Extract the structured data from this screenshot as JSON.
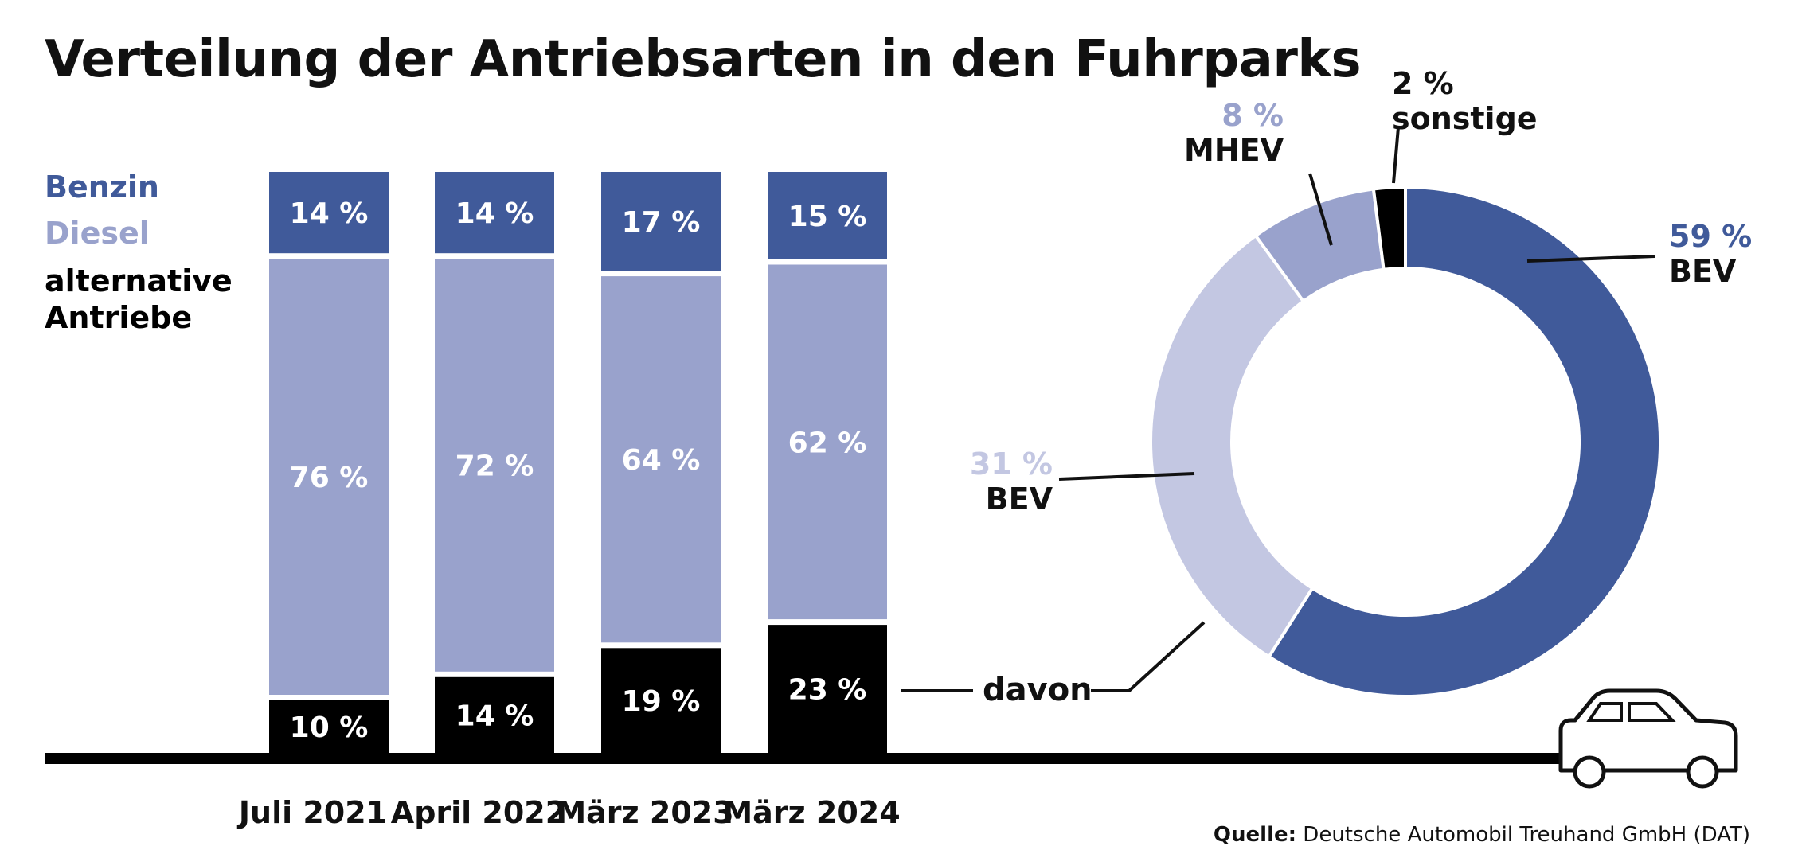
{
  "title": "Verteilung der Antriebsarten in den Fuhrparks",
  "legend": {
    "benzin": "Benzin",
    "diesel": "Diesel",
    "alternative_line1": "alternative",
    "alternative_line2": "Antriebe"
  },
  "colors": {
    "benzin": "#405a9a",
    "diesel": "#99a2cc",
    "alternative": "#000000",
    "bev": "#405a9a",
    "phev": "#c3c7e2",
    "mhev": "#99a2cc",
    "sonstige": "#000000",
    "baseline": "#000000"
  },
  "davon_label": "davon",
  "source": {
    "label": "Quelle:",
    "text": "Deutsche Automobil Treuhand GmbH (DAT)"
  },
  "chart_data": [
    {
      "type": "bar",
      "stacked": true,
      "categories": [
        "Juli 2021",
        "April 2022",
        "März 2023",
        "März 2024"
      ],
      "series": [
        {
          "name": "alternative Antriebe",
          "values": [
            10,
            14,
            19,
            23
          ],
          "labels": [
            "10 %",
            "14 %",
            "19 %",
            "23 %"
          ]
        },
        {
          "name": "Diesel",
          "values": [
            76,
            72,
            64,
            62
          ],
          "labels": [
            "76 %",
            "72 %",
            "64 %",
            "62 %"
          ]
        },
        {
          "name": "Benzin",
          "values": [
            14,
            14,
            17,
            15
          ],
          "labels": [
            "14 %",
            "14 %",
            "17 %",
            "15 %"
          ]
        }
      ],
      "ylim": [
        0,
        100
      ],
      "legend_position": "top-left"
    },
    {
      "type": "pie",
      "donut": true,
      "slices": [
        {
          "name": "BEV",
          "value": 59,
          "label": "59 %",
          "colorKey": "bev"
        },
        {
          "name": "BEV",
          "value": 31,
          "label": "31 %",
          "colorKey": "phev"
        },
        {
          "name": "MHEV",
          "value": 8,
          "label": "8 %",
          "colorKey": "mhev"
        },
        {
          "name": "sonstige",
          "value": 2,
          "label": "2 %",
          "colorKey": "sonstige"
        }
      ]
    }
  ]
}
